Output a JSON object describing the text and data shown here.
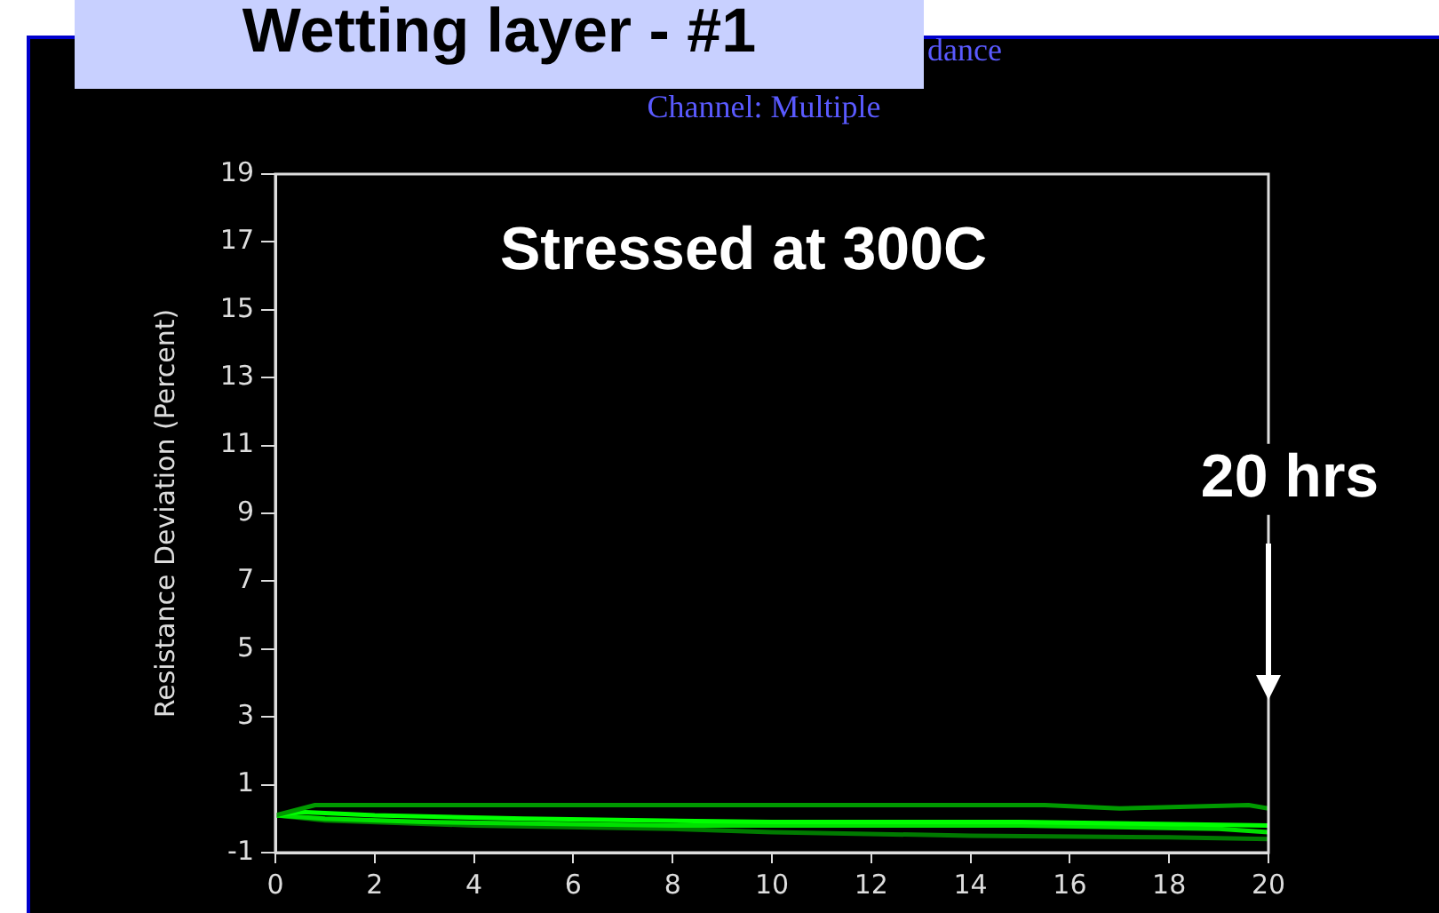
{
  "chart_data": {
    "type": "line",
    "title": "Wetting layer - #1",
    "subtitle": "Channel:   Multiple",
    "ylabel": "Resistance Deviation (Percent)",
    "annotations": [
      "dance",
      "Stressed at 300C",
      "20 hrs"
    ],
    "series": [
      {
        "color": "#009a00",
        "x": [
          0,
          0.8,
          15.5,
          17,
          19.6,
          20
        ],
        "values": [
          0.1,
          0.4,
          0.4,
          0.3,
          0.4,
          0.3
        ]
      },
      {
        "color": "#00ff00",
        "x": [
          0,
          0.5,
          2,
          5,
          10,
          15,
          20
        ],
        "values": [
          0.1,
          0.2,
          0.1,
          0,
          -0.1,
          -0.1,
          -0.2
        ]
      },
      {
        "color": "#00e000",
        "x": [
          0,
          1,
          3,
          8,
          15,
          19,
          20
        ],
        "values": [
          0.1,
          0,
          -0.1,
          -0.2,
          -0.2,
          -0.3,
          -0.4
        ]
      },
      {
        "color": "#007a00",
        "x": [
          0,
          1,
          4,
          8,
          10,
          14,
          18,
          20
        ],
        "values": [
          0.1,
          -0.05,
          -0.2,
          -0.3,
          -0.4,
          -0.5,
          -0.55,
          -0.6
        ]
      }
    ],
    "xlim": [
      0,
      20
    ],
    "xticks": [
      0,
      2,
      4,
      6,
      8,
      10,
      12,
      14,
      16,
      18,
      20
    ],
    "ylim": [
      -1,
      19
    ],
    "yticks": [
      -1,
      1,
      3,
      5,
      7,
      9,
      11,
      13,
      15,
      17,
      19
    ],
    "grid": false,
    "legend": false,
    "marker": "none",
    "line_style": "solid"
  }
}
